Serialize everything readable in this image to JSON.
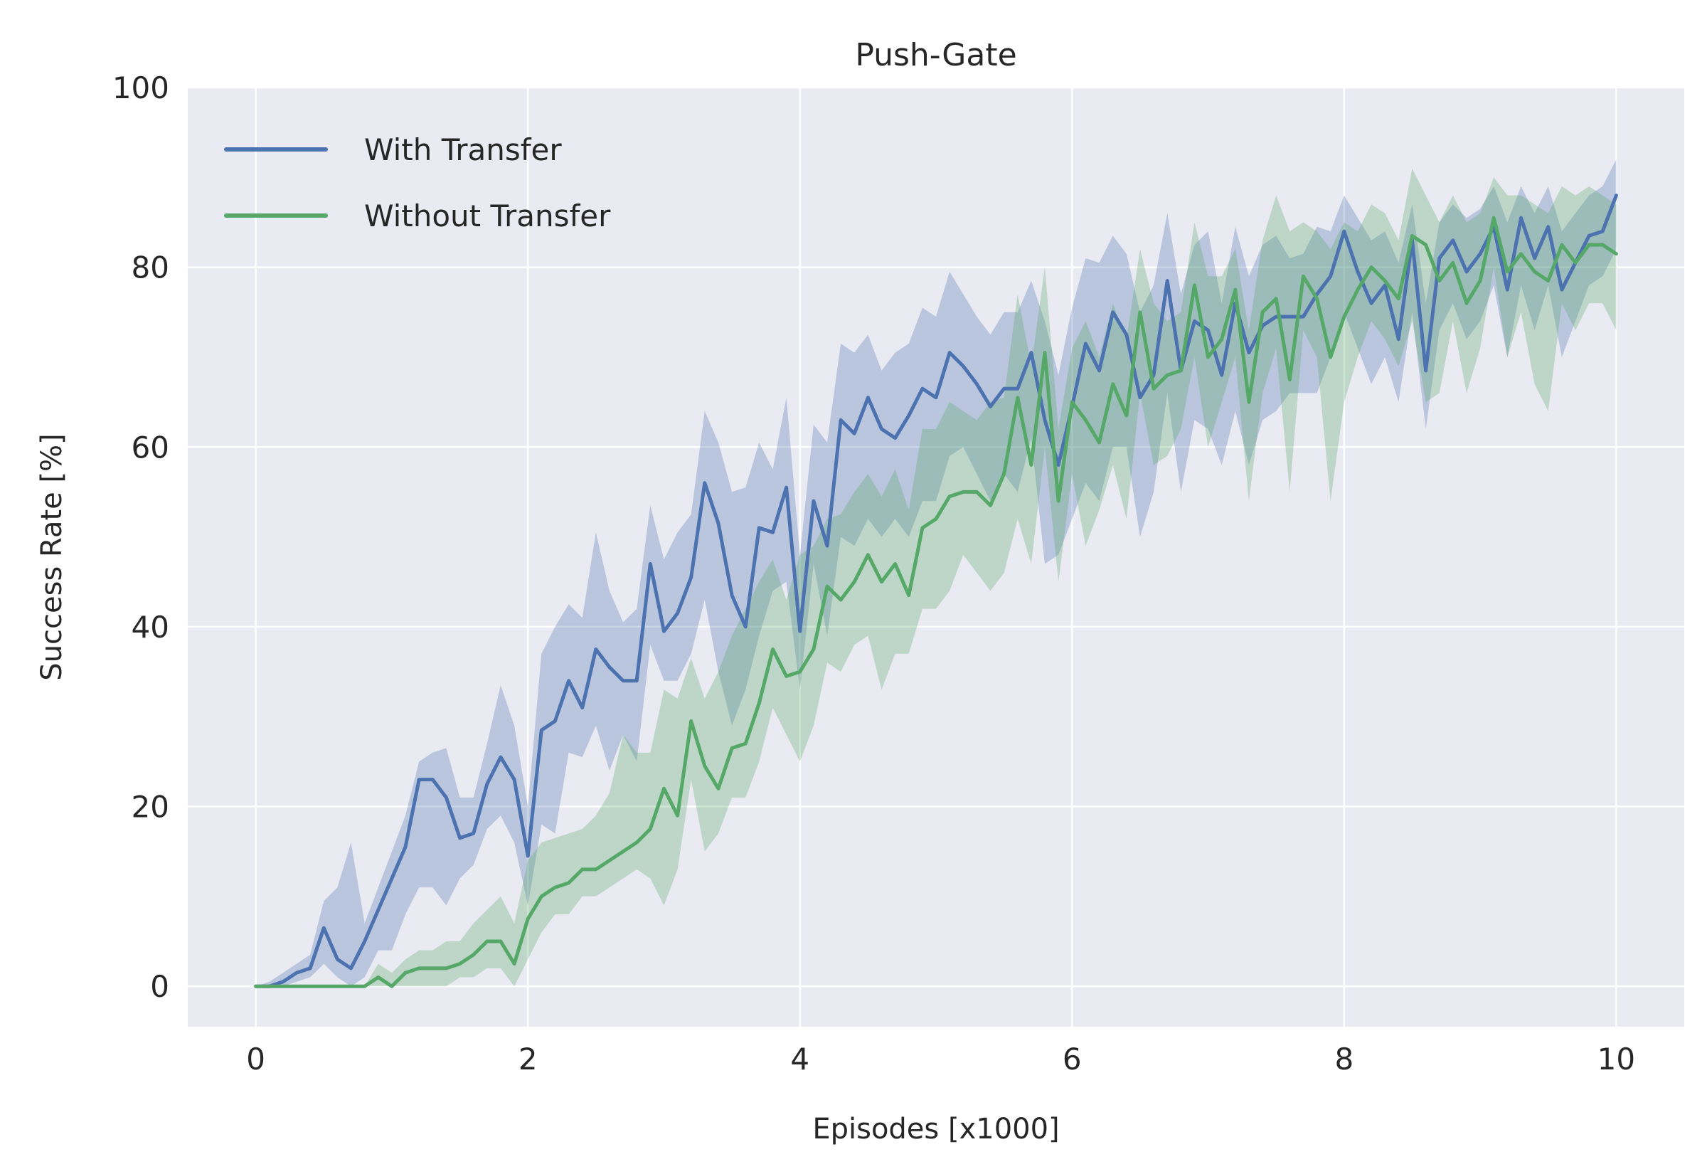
{
  "chart_data": {
    "type": "line",
    "title": "Push-Gate",
    "xlabel": "Episodes [x1000]",
    "ylabel": "Success Rate [%]",
    "xlim": [
      -0.5,
      10.5
    ],
    "ylim": [
      -4.5,
      100
    ],
    "xticks": [
      0,
      2,
      4,
      6,
      8,
      10
    ],
    "xtick_labels": [
      "0",
      "2",
      "4",
      "6",
      "8",
      "10"
    ],
    "yticks": [
      0,
      20,
      40,
      60,
      80,
      100
    ],
    "ytick_labels": [
      "0",
      "20",
      "40",
      "60",
      "80",
      "100"
    ],
    "grid": true,
    "legend_position": "top-left",
    "background_color": "#EAEAF2",
    "series": [
      {
        "name": "With Transfer",
        "color": "#4C72B0",
        "x": [
          0,
          0.1,
          0.2,
          0.3,
          0.4,
          0.5,
          0.6,
          0.7,
          0.8,
          0.9,
          1.0,
          1.1,
          1.2,
          1.3,
          1.4,
          1.5,
          1.6,
          1.7,
          1.8,
          1.9,
          2.0,
          2.1,
          2.2,
          2.3,
          2.4,
          2.5,
          2.6,
          2.7,
          2.8,
          2.9,
          3.0,
          3.1,
          3.2,
          3.3,
          3.4,
          3.5,
          3.6,
          3.7,
          3.8,
          3.9,
          4.0,
          4.1,
          4.2,
          4.3,
          4.4,
          4.5,
          4.6,
          4.7,
          4.8,
          4.9,
          5.0,
          5.1,
          5.2,
          5.3,
          5.4,
          5.5,
          5.6,
          5.7,
          5.8,
          5.9,
          6.0,
          6.1,
          6.2,
          6.3,
          6.4,
          6.5,
          6.6,
          6.7,
          6.8,
          6.9,
          7.0,
          7.1,
          7.2,
          7.3,
          7.4,
          7.5,
          7.6,
          7.7,
          7.8,
          7.9,
          8.0,
          8.1,
          8.2,
          8.3,
          8.4,
          8.5,
          8.6,
          8.7,
          8.8,
          8.9,
          9.0,
          9.1,
          9.2,
          9.3,
          9.4,
          9.5,
          9.6,
          9.7,
          9.8,
          9.9,
          10.0
        ],
        "y": [
          0,
          0,
          0.5,
          1.5,
          2,
          6.5,
          3,
          2,
          5,
          8.5,
          12,
          15.5,
          23,
          23,
          21,
          16.5,
          17,
          22.5,
          25.5,
          23,
          14.5,
          28.5,
          29.5,
          34,
          31,
          37.5,
          35.5,
          34,
          34,
          47,
          39.5,
          41.5,
          45.5,
          56,
          51.5,
          43.5,
          40,
          51,
          50.5,
          55.5,
          39.5,
          54,
          49,
          63,
          61.5,
          65.5,
          62,
          61,
          63.5,
          66.5,
          65.5,
          70.5,
          69,
          67,
          64.5,
          66.5,
          66.5,
          70.5,
          63,
          58,
          64.5,
          71.5,
          68.5,
          75,
          72.5,
          65.5,
          68,
          78.5,
          68.5,
          74,
          73,
          68,
          76,
          70.5,
          73.5,
          74.5,
          74.5,
          74.5,
          77,
          79,
          84,
          79.5,
          76,
          78,
          72,
          83,
          68.5,
          81,
          83,
          79.5,
          81.5,
          84.5,
          77.5,
          85.5,
          81,
          84.5,
          77.5,
          80.5,
          83.5,
          84,
          88
        ],
        "y_lower": [
          0,
          0,
          0,
          0.5,
          1,
          2.5,
          1,
          0,
          1,
          4,
          4,
          8,
          11,
          11,
          9,
          12,
          13.5,
          17.5,
          19,
          16,
          9,
          18,
          17,
          26,
          25.5,
          29,
          24,
          28,
          25,
          38,
          34,
          34,
          37,
          43,
          35,
          29,
          33,
          39,
          44,
          45,
          33,
          47,
          39,
          50,
          49,
          52,
          50,
          52,
          50,
          54,
          54,
          59,
          60,
          57,
          54,
          57,
          55,
          61,
          47,
          48,
          52,
          56,
          54,
          60,
          60,
          50,
          55,
          66,
          55,
          63,
          62,
          58,
          64,
          58,
          63,
          64,
          66,
          66,
          66,
          70,
          75,
          71,
          67,
          70,
          65,
          75,
          62,
          73,
          76,
          72,
          74,
          78,
          70,
          78,
          73,
          78,
          70,
          74,
          78,
          79,
          82
        ],
        "y_upper": [
          0,
          0.5,
          1.5,
          2.5,
          3.5,
          9.5,
          11,
          16,
          7,
          11,
          15,
          19,
          25,
          26,
          26.5,
          21,
          21,
          27,
          33.5,
          29,
          20,
          37,
          40,
          42.5,
          41,
          50.5,
          44,
          40.5,
          42,
          53.5,
          47.5,
          50.5,
          52.5,
          64,
          60.5,
          55,
          55.5,
          60.5,
          57.5,
          65.5,
          48,
          62.5,
          60.5,
          71.5,
          70.5,
          72.5,
          68.5,
          70.5,
          71.5,
          75.5,
          74.5,
          79.5,
          77,
          74.5,
          72.5,
          75,
          75,
          78.5,
          74,
          68,
          75.5,
          81,
          80.5,
          83.5,
          81.5,
          75,
          78,
          86,
          77,
          82.5,
          84,
          76,
          84.5,
          79,
          82.5,
          83.5,
          81,
          81.5,
          84.5,
          84,
          88,
          85.5,
          83,
          84,
          80.5,
          87,
          76,
          85,
          87,
          85.5,
          86.5,
          89,
          85,
          89,
          86,
          89,
          84,
          86,
          88,
          89,
          92
        ]
      },
      {
        "name": "Without Transfer",
        "color": "#55A868",
        "x": [
          0,
          0.1,
          0.2,
          0.3,
          0.4,
          0.5,
          0.6,
          0.7,
          0.8,
          0.9,
          1.0,
          1.1,
          1.2,
          1.3,
          1.4,
          1.5,
          1.6,
          1.7,
          1.8,
          1.9,
          2.0,
          2.1,
          2.2,
          2.3,
          2.4,
          2.5,
          2.6,
          2.7,
          2.8,
          2.9,
          3.0,
          3.1,
          3.2,
          3.3,
          3.4,
          3.5,
          3.6,
          3.7,
          3.8,
          3.9,
          4.0,
          4.1,
          4.2,
          4.3,
          4.4,
          4.5,
          4.6,
          4.7,
          4.8,
          4.9,
          5.0,
          5.1,
          5.2,
          5.3,
          5.4,
          5.5,
          5.6,
          5.7,
          5.8,
          5.9,
          6.0,
          6.1,
          6.2,
          6.3,
          6.4,
          6.5,
          6.6,
          6.7,
          6.8,
          6.9,
          7.0,
          7.1,
          7.2,
          7.3,
          7.4,
          7.5,
          7.6,
          7.7,
          7.8,
          7.9,
          8.0,
          8.1,
          8.2,
          8.3,
          8.4,
          8.5,
          8.6,
          8.7,
          8.8,
          8.9,
          9.0,
          9.1,
          9.2,
          9.3,
          9.4,
          9.5,
          9.6,
          9.7,
          9.8,
          9.9,
          10.0
        ],
        "y": [
          0,
          0,
          0,
          0,
          0,
          0,
          0,
          0,
          0,
          1,
          0,
          1.5,
          2,
          2,
          2,
          2.5,
          3.5,
          5,
          5,
          2.5,
          7.5,
          10,
          11,
          11.5,
          13,
          13,
          14,
          15,
          16,
          17.5,
          22,
          19,
          29.5,
          24.5,
          22,
          26.5,
          27,
          31.5,
          37.5,
          34.5,
          35,
          37.5,
          44.5,
          43,
          45,
          48,
          45,
          47,
          43.5,
          51,
          52,
          54.5,
          55,
          55,
          53.5,
          57,
          65.5,
          58,
          70.5,
          54,
          65,
          63,
          60.5,
          67,
          63.5,
          75,
          66.5,
          68,
          68.5,
          78,
          70,
          72,
          77.5,
          65,
          75,
          76.5,
          67.5,
          79,
          76.5,
          70,
          74.5,
          77.5,
          80,
          78.5,
          76.5,
          83.5,
          82.5,
          78.5,
          80.5,
          76,
          78.5,
          85.5,
          79.5,
          81.5,
          79.5,
          78.5,
          82.5,
          80.5,
          82.5,
          82.5,
          81.5
        ],
        "y_lower": [
          0,
          0,
          0,
          0,
          0,
          0,
          0,
          0,
          0,
          0,
          0,
          0,
          0,
          0,
          0,
          1,
          1,
          2,
          2,
          0,
          3,
          6,
          8,
          8,
          10,
          10,
          11,
          12,
          13,
          12,
          9,
          13,
          23,
          15,
          17,
          21,
          21,
          25,
          31,
          28,
          25,
          29,
          36,
          35,
          38,
          39,
          33,
          37,
          37,
          42,
          42,
          44,
          48,
          46,
          44,
          46,
          52,
          47,
          60,
          45,
          57,
          49,
          53,
          58,
          52,
          66,
          58,
          59,
          62,
          70,
          60,
          65,
          70,
          54,
          66,
          71,
          55,
          73,
          70,
          54,
          65,
          70,
          74,
          72,
          69,
          74,
          65,
          66,
          74,
          66,
          71,
          80,
          70,
          75,
          67,
          64,
          76,
          73,
          76,
          76,
          73
        ],
        "y_upper": [
          0,
          0,
          0,
          0,
          0,
          0,
          0,
          0,
          0,
          2.5,
          1.5,
          3,
          4,
          4,
          5,
          5,
          7,
          8.5,
          10,
          7,
          14,
          16,
          16.5,
          17,
          17.5,
          19,
          21.5,
          28,
          26,
          26,
          33,
          32,
          36.5,
          32,
          35,
          39,
          42,
          45,
          47.5,
          43,
          48,
          49,
          52,
          52.5,
          55,
          57,
          54.5,
          57.5,
          53,
          62,
          62,
          65,
          64,
          63,
          65,
          65.5,
          77,
          69,
          80,
          62,
          71,
          74,
          70,
          76,
          72,
          82,
          76,
          74,
          75,
          85,
          79,
          79,
          82,
          73,
          83,
          88,
          84,
          85,
          84,
          82,
          85,
          84,
          87,
          86,
          83,
          91,
          88,
          85,
          88,
          85,
          86,
          90,
          88,
          88,
          87,
          86,
          89,
          88,
          89,
          88,
          87
        ]
      }
    ]
  }
}
